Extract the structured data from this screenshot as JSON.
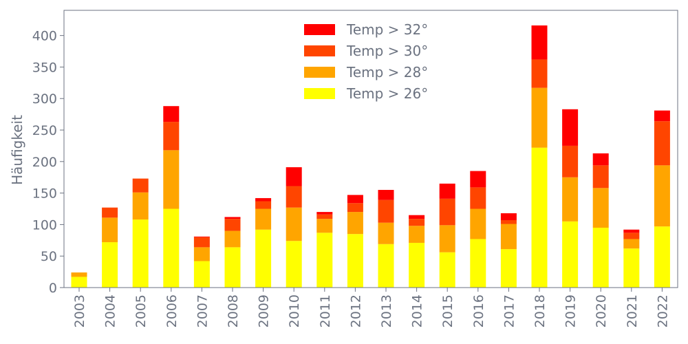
{
  "chart_data": {
    "type": "bar",
    "stacked": true,
    "title": "",
    "xlabel": "",
    "ylabel": "Häufigkeit",
    "ylim": [
      0,
      440
    ],
    "yticks": [
      0,
      50,
      100,
      150,
      200,
      250,
      300,
      350,
      400
    ],
    "grid": false,
    "legend_position": "top-center",
    "categories": [
      "2003",
      "2004",
      "2005",
      "2006",
      "2007",
      "2008",
      "2009",
      "2010",
      "2011",
      "2012",
      "2013",
      "2014",
      "2015",
      "2016",
      "2017",
      "2018",
      "2019",
      "2020",
      "2021",
      "2022"
    ],
    "series": [
      {
        "name": "Temp > 26°",
        "color": "#ffff00",
        "values": [
          17,
          72,
          108,
          125,
          42,
          64,
          92,
          74,
          87,
          85,
          69,
          71,
          56,
          77,
          61,
          222,
          105,
          95,
          62,
          97
        ]
      },
      {
        "name": "Temp > 28°",
        "color": "#ffa500",
        "values": [
          7,
          39,
          43,
          93,
          22,
          26,
          33,
          53,
          22,
          35,
          34,
          27,
          43,
          48,
          40,
          95,
          70,
          63,
          15,
          97
        ]
      },
      {
        "name": "Temp > 30°",
        "color": "#ff4500",
        "values": [
          0,
          16,
          22,
          45,
          16,
          19,
          12,
          34,
          7,
          14,
          36,
          11,
          42,
          34,
          6,
          45,
          50,
          36,
          10,
          70
        ]
      },
      {
        "name": "Temp > 32°",
        "color": "#ff0000",
        "values": [
          0,
          0,
          0,
          25,
          1,
          3,
          5,
          30,
          4,
          13,
          16,
          6,
          24,
          26,
          11,
          54,
          58,
          19,
          5,
          17
        ]
      }
    ],
    "legend_order": [
      "Temp > 32°",
      "Temp > 30°",
      "Temp > 28°",
      "Temp > 26°"
    ]
  }
}
